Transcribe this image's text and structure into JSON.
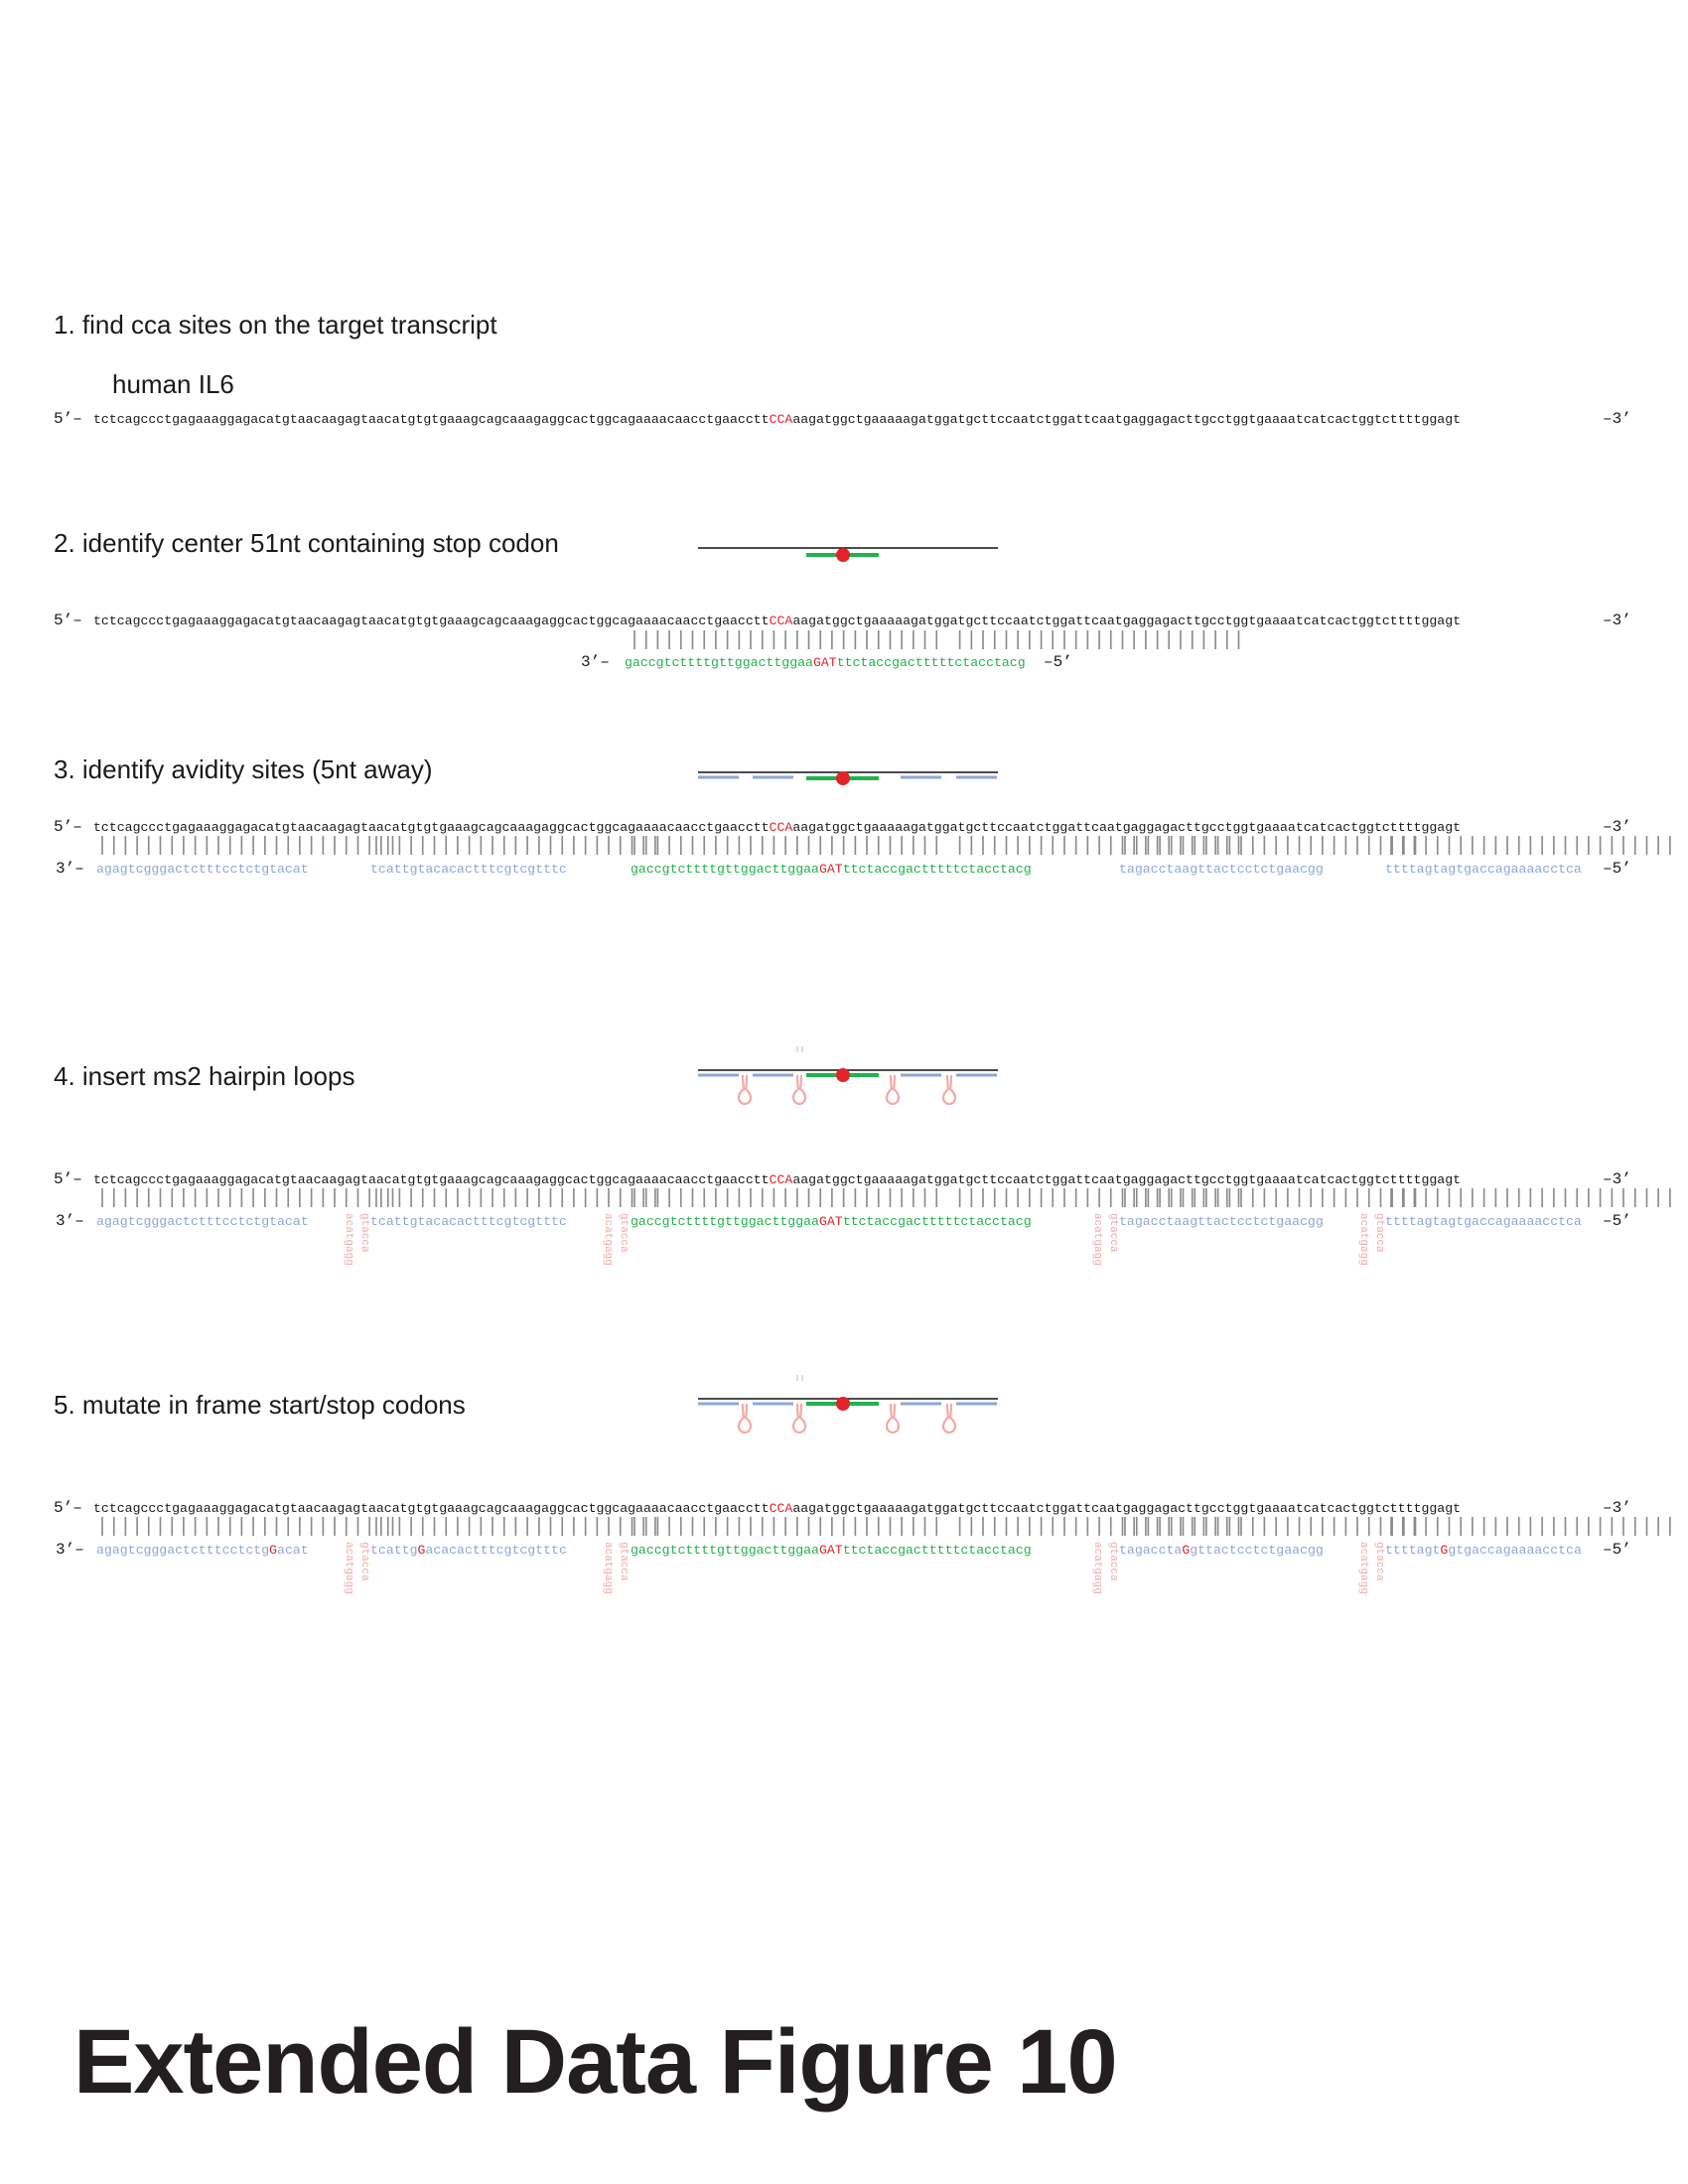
{
  "figure_title": "Extended Data Figure 10",
  "steps": [
    {
      "title": "1. find cca sites on the target transcript",
      "subtitle": "human IL6"
    },
    {
      "title": "2. identify center 51nt containing stop codon"
    },
    {
      "title": "3. identify avidity sites (5nt away)"
    },
    {
      "title": "4. insert ms2 hairpin loops"
    },
    {
      "title": "5. mutate in frame start/stop codons"
    }
  ],
  "labels": {
    "five_prime": "5’–",
    "three_prime": "–3’",
    "three_prime_left": "3’–",
    "five_prime_right": "–5’"
  },
  "target": {
    "before": "tctcagccctgagaaaggagacatgtaacaagagtaacatgtgtgaaagcagcaaagaggcactggcagaaaacaacctgaacctt",
    "site": "CCA",
    "after": "aagatggctgaaaaagatggatgcttccaatctggattcaatgaggagacttgcctggtgaaaatcatcactggtcttttggagt"
  },
  "center_probe": {
    "before": "gaccgtcttttgttggacttggaa",
    "site": "GAT",
    "after": "ttctaccgactttttctacctacg"
  },
  "avidity_probes": [
    "agagtcgggactctttcctctgtacat",
    "tcattgtacacactttcgtcgtttc",
    "tagacctaagttactcctctgaacgg",
    "ttttagtagtgaccagaaaacctca"
  ],
  "mutated_probes": [
    {
      "before": "agagtcgggactctttcctctg",
      "mut": "G",
      "after": "acat"
    },
    {
      "before": "tcattg",
      "mut": "G",
      "after": "acacactttcgtcgtttc"
    },
    {
      "before": "tagaccta",
      "mut": "G",
      "after": "gttactcctctgaacgg"
    },
    {
      "before": "ttttagt",
      "mut": "G",
      "after": "gtgaccagaaaacctca"
    }
  ],
  "hairpin": {
    "stem_a": "acatg",
    "stem_b": "gtacc",
    "loop_a": "agg",
    "loop_b": "a"
  },
  "colors": {
    "site": "#e2232a",
    "center": "#22b24c",
    "avidity": "#8ea6d8",
    "hairpin": "#f2aaa6",
    "pairing": "#8a8a8a"
  }
}
